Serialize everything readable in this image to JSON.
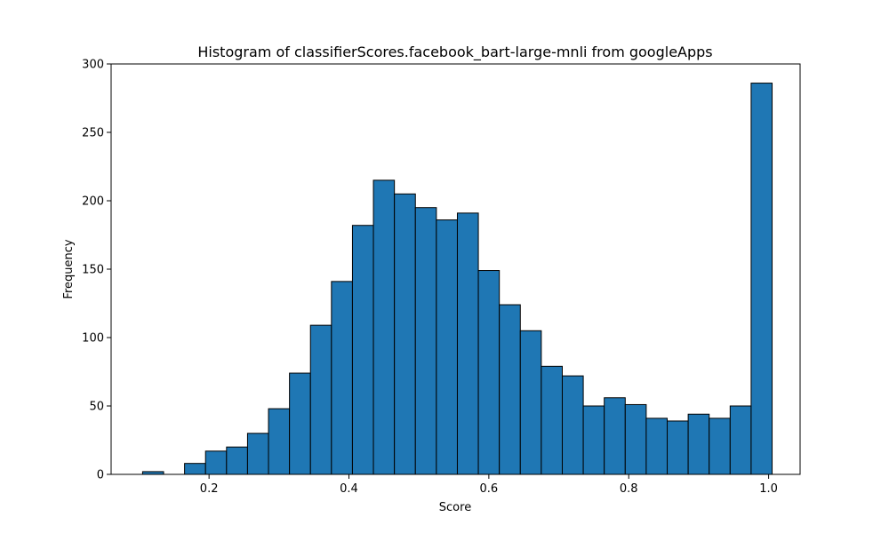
{
  "chart_data": {
    "type": "bar",
    "title": "Histogram of classifierScores.facebook_bart-large-mnli from googleApps",
    "xlabel": "Score",
    "ylabel": "Frequency",
    "xlim": [
      0.06,
      1.045
    ],
    "ylim": [
      0,
      300
    ],
    "grid": false,
    "legend": "none",
    "bar_color": "#1f77b4",
    "edge_color": "#000000",
    "x_ticks": [
      {
        "value": 0.2,
        "label": "0.2"
      },
      {
        "value": 0.4,
        "label": "0.4"
      },
      {
        "value": 0.6,
        "label": "0.6"
      },
      {
        "value": 0.8,
        "label": "0.8"
      },
      {
        "value": 1.0,
        "label": "1.0"
      }
    ],
    "y_ticks": [
      {
        "value": 0,
        "label": "0"
      },
      {
        "value": 50,
        "label": "50"
      },
      {
        "value": 100,
        "label": "100"
      },
      {
        "value": 150,
        "label": "150"
      },
      {
        "value": 200,
        "label": "200"
      },
      {
        "value": 250,
        "label": "250"
      },
      {
        "value": 300,
        "label": "300"
      }
    ],
    "bin_start": 0.105,
    "bin_width": 0.03,
    "values": [
      2,
      0,
      8,
      17,
      20,
      30,
      48,
      74,
      109,
      141,
      182,
      215,
      205,
      195,
      186,
      191,
      149,
      124,
      105,
      79,
      72,
      50,
      56,
      51,
      41,
      39,
      44,
      41,
      50,
      286
    ]
  }
}
